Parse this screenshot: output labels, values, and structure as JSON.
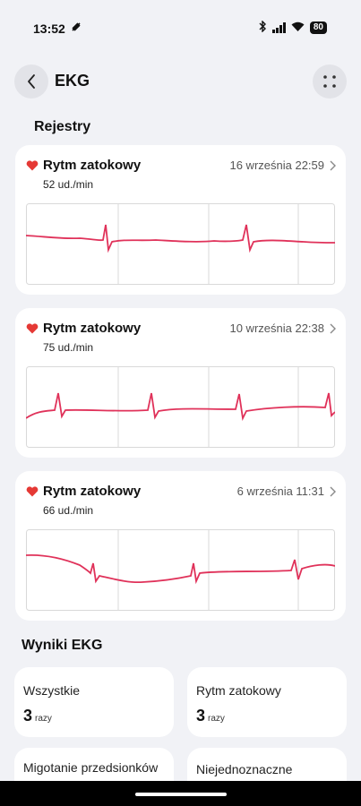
{
  "status_bar": {
    "time": "13:52",
    "battery": "80"
  },
  "header": {
    "title": "EKG"
  },
  "records_section": {
    "title": "Rejestry"
  },
  "records": [
    {
      "rhythm": "Rytm zatokowy",
      "bpm": "52 ud./min",
      "date": "16 września 22:59"
    },
    {
      "rhythm": "Rytm zatokowy",
      "bpm": "75 ud./min",
      "date": "10 września 22:38"
    },
    {
      "rhythm": "Rytm zatokowy",
      "bpm": "66 ud./min",
      "date": "6 września 11:31"
    }
  ],
  "results_section": {
    "title": "Wyniki EKG"
  },
  "results": [
    {
      "label": "Wszystkie",
      "value": "3",
      "unit": "razy"
    },
    {
      "label": "Rytm zatokowy",
      "value": "3",
      "unit": "razy"
    },
    {
      "label": "Migotanie przedsionków",
      "value": "",
      "unit": ""
    },
    {
      "label": "Niejednoznaczne",
      "value": "",
      "unit": ""
    }
  ],
  "colors": {
    "accent": "#e0325a",
    "heart": "#e53935",
    "background": "#f1f2f6"
  },
  "icons": [
    "back-arrow-icon",
    "more-dots-icon",
    "heart-icon",
    "chevron-right-icon"
  ]
}
